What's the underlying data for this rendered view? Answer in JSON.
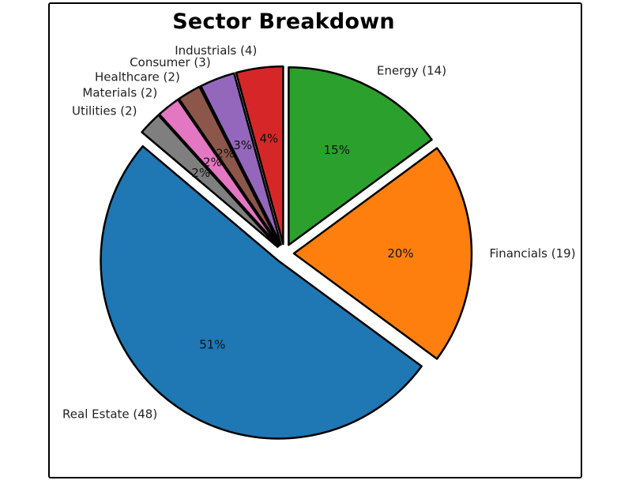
{
  "chart_data": {
    "type": "pie",
    "title": "Sector Breakdown",
    "slices": [
      {
        "name": "Energy",
        "value": 14,
        "label": "Energy (14)",
        "pct_label": "15%",
        "color": "#2ca02c"
      },
      {
        "name": "Financials",
        "value": 19,
        "label": "Financials (19)",
        "pct_label": "20%",
        "color": "#ff7f0e"
      },
      {
        "name": "Real Estate",
        "value": 48,
        "label": "Real Estate (48)",
        "pct_label": "51%",
        "color": "#1f77b4"
      },
      {
        "name": "Utilities",
        "value": 2,
        "label": "Utilities (2)",
        "pct_label": "2%",
        "color": "#7f7f7f"
      },
      {
        "name": "Materials",
        "value": 2,
        "label": "Materials (2)",
        "pct_label": "2%",
        "color": "#e377c2"
      },
      {
        "name": "Healthcare",
        "value": 2,
        "label": "Healthcare (2)",
        "pct_label": "2%",
        "color": "#8c564b"
      },
      {
        "name": "Consumer",
        "value": 3,
        "label": "Consumer (3)",
        "pct_label": "3%",
        "color": "#9467bd"
      },
      {
        "name": "Industrials",
        "value": 4,
        "label": "Industrials (4)",
        "pct_label": "4%",
        "color": "#d62728"
      }
    ]
  }
}
